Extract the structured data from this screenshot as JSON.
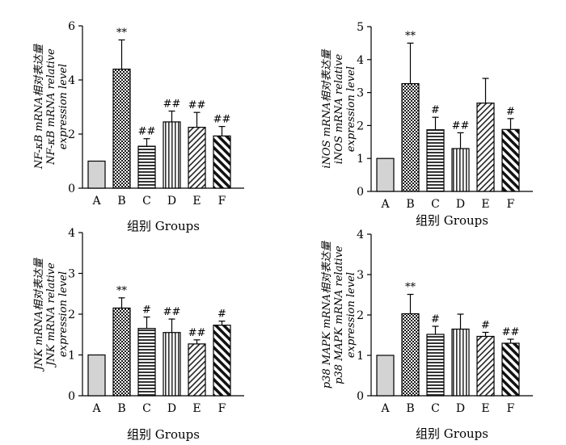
{
  "chart_data": [
    {
      "type": "bar",
      "panel": "top-left",
      "categories": [
        "A",
        "B",
        "C",
        "D",
        "E",
        "F"
      ],
      "values": [
        1.0,
        4.4,
        1.55,
        2.45,
        2.25,
        1.93
      ],
      "errors": [
        0,
        1.08,
        0.28,
        0.4,
        0.55,
        0.35
      ],
      "annotations": [
        "",
        "**",
        "##",
        "##",
        "##",
        "##"
      ],
      "xlabel": "组别 Groups",
      "ylabel": [
        "NF-κB mRNA相对表达量",
        "NF-κB mRNA relative",
        "expression level"
      ],
      "ylim": [
        0,
        6
      ],
      "yticks": [
        0,
        2,
        4,
        6
      ]
    },
    {
      "type": "bar",
      "panel": "top-right",
      "categories": [
        "A",
        "B",
        "C",
        "D",
        "E",
        "F"
      ],
      "values": [
        1.0,
        3.27,
        1.87,
        1.3,
        2.68,
        1.88
      ],
      "errors": [
        0,
        1.23,
        0.38,
        0.48,
        0.75,
        0.33
      ],
      "annotations": [
        "",
        "**",
        "#",
        "##",
        "",
        "#"
      ],
      "xlabel": "组别 Groups",
      "ylabel": [
        "iNOS mRNA相对表达量",
        "iNOS mRNA relative",
        "expression level"
      ],
      "ylim": [
        0,
        5
      ],
      "yticks": [
        0,
        1,
        2,
        3,
        4,
        5
      ]
    },
    {
      "type": "bar",
      "panel": "bottom-left",
      "categories": [
        "A",
        "B",
        "C",
        "D",
        "E",
        "F"
      ],
      "values": [
        1.0,
        2.15,
        1.65,
        1.55,
        1.27,
        1.73
      ],
      "errors": [
        0,
        0.25,
        0.28,
        0.33,
        0.1,
        0.1
      ],
      "annotations": [
        "",
        "**",
        "#",
        "##",
        "##",
        "#"
      ],
      "xlabel": "组别 Groups",
      "ylabel": [
        "JNK mRNA相对表达量",
        "JNK mRNA relative",
        "expression level"
      ],
      "ylim": [
        0,
        4
      ],
      "yticks": [
        0,
        1,
        2,
        3,
        4
      ]
    },
    {
      "type": "bar",
      "panel": "bottom-right",
      "categories": [
        "A",
        "B",
        "C",
        "D",
        "E",
        "F"
      ],
      "values": [
        1.0,
        2.03,
        1.52,
        1.65,
        1.47,
        1.3
      ],
      "errors": [
        0,
        0.48,
        0.2,
        0.37,
        0.1,
        0.1
      ],
      "annotations": [
        "",
        "**",
        "#",
        "",
        "#",
        "##"
      ],
      "xlabel": "组别 Groups",
      "ylabel": [
        "p38 MAPK mRNA相对表达量",
        "p38 MAPK mRNA relative",
        "expression level"
      ],
      "ylim": [
        0,
        4
      ],
      "yticks": [
        0,
        1,
        2,
        3,
        4
      ]
    }
  ],
  "colors": {
    "bar_stroke": "#000000",
    "bar_A_fill": "#d3d3d3"
  }
}
